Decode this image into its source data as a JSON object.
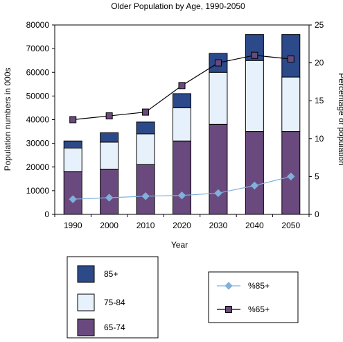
{
  "chart_data": {
    "type": "bar",
    "title": "Older Population by Age, 1990-2050",
    "xlabel": "Year",
    "ylabel": "Population numbers in 000s",
    "y2label": "Percentage of population",
    "categories": [
      "1990",
      "2000",
      "2010",
      "2020",
      "2030",
      "2040",
      "2050"
    ],
    "ylim": [
      0,
      80000
    ],
    "yticks": [
      "0",
      "10000",
      "20000",
      "30000",
      "40000",
      "50000",
      "60000",
      "70000",
      "80000"
    ],
    "y2lim": [
      0,
      25
    ],
    "y2ticks": [
      "0",
      "5",
      "10",
      "15",
      "20",
      "25"
    ],
    "stacked": true,
    "series": [
      {
        "name": "65-74",
        "values": [
          18000,
          19000,
          21000,
          31000,
          38000,
          35000,
          35000
        ],
        "color": "#6a4a7e"
      },
      {
        "name": "75-84",
        "values": [
          10000,
          11500,
          13000,
          14000,
          22000,
          30000,
          23000
        ],
        "color": "#e6f1fb"
      },
      {
        "name": "85+",
        "values": [
          3000,
          4000,
          5000,
          6000,
          8000,
          11000,
          18000
        ],
        "color": "#2c4a8a"
      }
    ],
    "line_series": [
      {
        "name": "%85+",
        "axis": "right",
        "marker": "diamond",
        "values": [
          2.0,
          2.2,
          2.4,
          2.5,
          2.8,
          3.8,
          5.0
        ],
        "color": "#80b0dc"
      },
      {
        "name": "%65+",
        "axis": "right",
        "marker": "square",
        "values": [
          12.5,
          13.0,
          13.5,
          17.0,
          20.0,
          21.0,
          20.5
        ],
        "color": "#000000",
        "marker_color": "#6a4a7e"
      }
    ],
    "legend_bars": [
      "85+",
      "75-84",
      "65-74"
    ],
    "legend_lines": [
      "%85+",
      "%65+"
    ],
    "grid": false
  }
}
